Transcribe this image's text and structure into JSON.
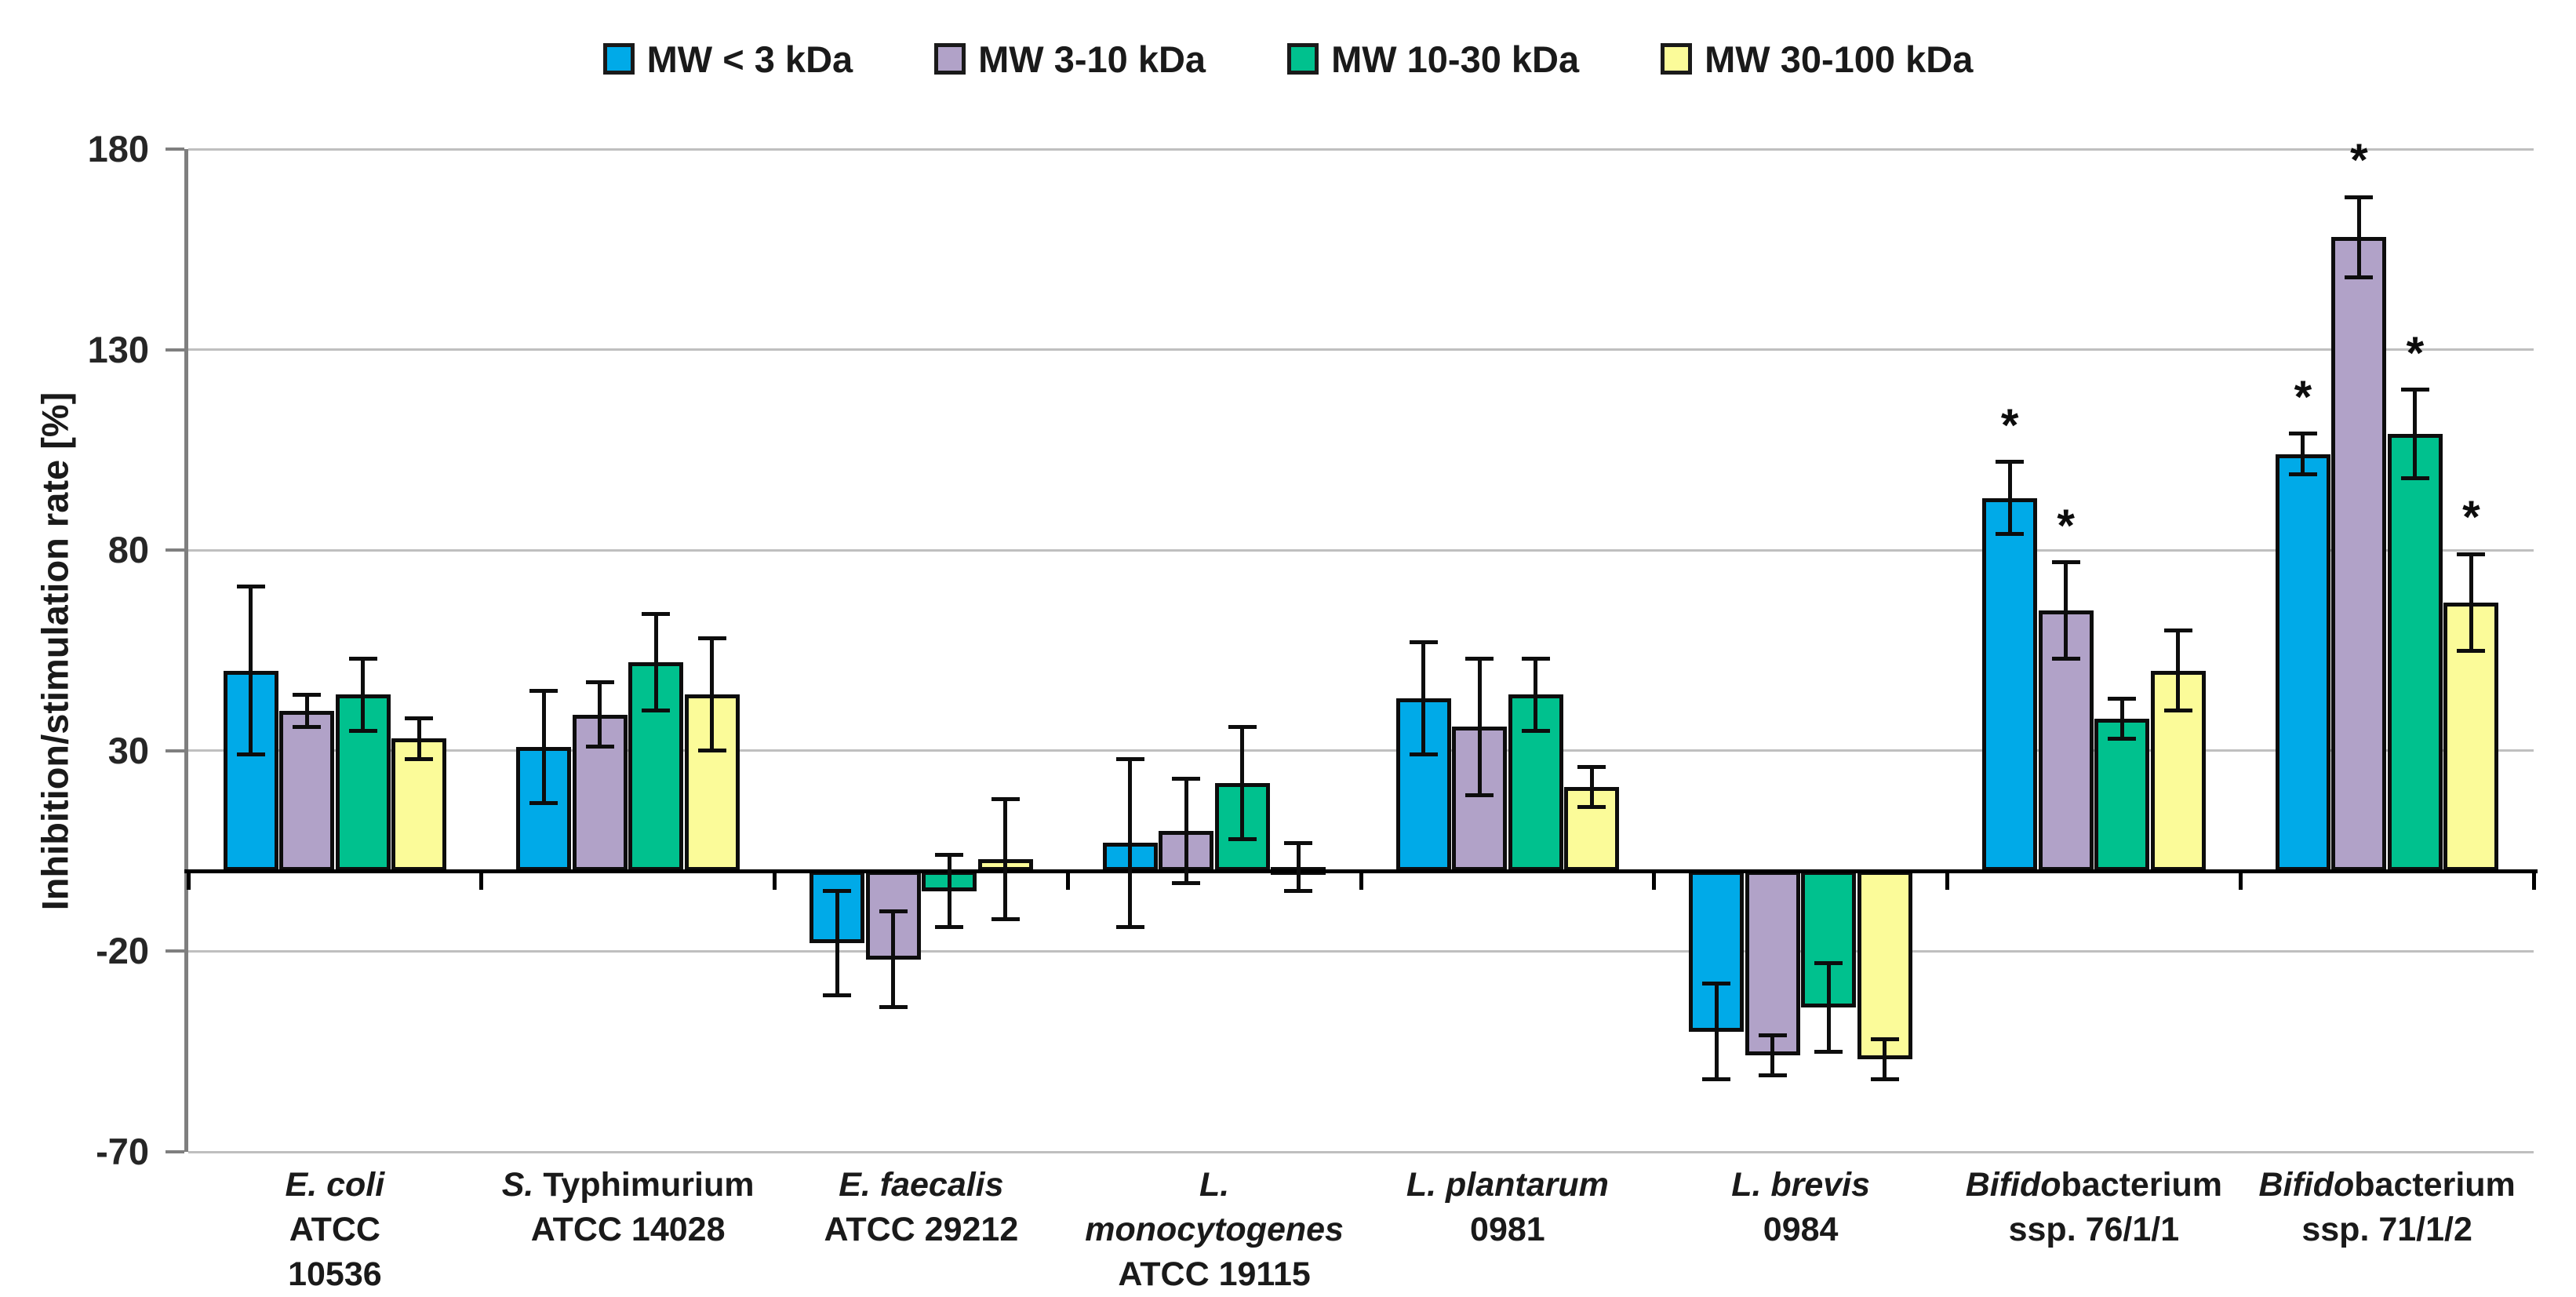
{
  "figure": {
    "kind": "grouped bar chart with error bars",
    "background": "#ffffff"
  },
  "chart_data": {
    "type": "bar",
    "title": "",
    "xlabel": "",
    "ylabel": "Inhibition/stimulation rate [%]",
    "ylim": [
      -70,
      180
    ],
    "yticks": [
      180,
      130,
      80,
      30,
      -20,
      -70
    ],
    "grid": "horizontal",
    "legend_position": "top-center",
    "significance_marker": "*",
    "colors": {
      "grid": "#bfbfbf",
      "y_axis": "#7f7f7f",
      "zero_line": "#000000",
      "bar_border": "#0d0d0d"
    },
    "categories": [
      {
        "text": "E. coli ATCC 10536",
        "lines": [
          [
            {
              "t": "E. coli",
              "i": true
            }
          ],
          [
            {
              "t": "ATCC",
              "i": false
            }
          ],
          [
            {
              "t": "10536",
              "i": false
            }
          ]
        ]
      },
      {
        "text": "S. Typhimurium ATCC 14028",
        "lines": [
          [
            {
              "t": "S.",
              "i": true
            },
            {
              "t": " Typhimurium",
              "i": false
            }
          ],
          [
            {
              "t": "ATCC 14028",
              "i": false
            }
          ]
        ]
      },
      {
        "text": "E. faecalis ATCC 29212",
        "lines": [
          [
            {
              "t": "E. faecalis",
              "i": true
            }
          ],
          [
            {
              "t": "ATCC 29212",
              "i": false
            }
          ]
        ]
      },
      {
        "text": "L. monocytogenes ATCC 19115",
        "lines": [
          [
            {
              "t": "L. monocytogenes",
              "i": true
            }
          ],
          [
            {
              "t": "ATCC 19115",
              "i": false
            }
          ]
        ]
      },
      {
        "text": "L. plantarum 0981",
        "lines": [
          [
            {
              "t": "L. plantarum",
              "i": true
            }
          ],
          [
            {
              "t": "0981",
              "i": false
            }
          ]
        ]
      },
      {
        "text": "L. brevis 0984",
        "lines": [
          [
            {
              "t": "L. brevis",
              "i": true
            }
          ],
          [
            {
              "t": "0984",
              "i": false
            }
          ]
        ]
      },
      {
        "text": "Bifidobacterium ssp. 76/1/1",
        "lines": [
          [
            {
              "t": "Bifido",
              "i": true
            },
            {
              "t": "bacterium",
              "i": false
            }
          ],
          [
            {
              "t": "ssp. 76/1/1",
              "i": false
            }
          ]
        ]
      },
      {
        "text": "Bifidobacterium ssp. 71/1/2",
        "lines": [
          [
            {
              "t": "Bifido",
              "i": true
            },
            {
              "t": "bacterium",
              "i": false
            }
          ],
          [
            {
              "t": "ssp. 71/1/2",
              "i": false
            }
          ]
        ]
      }
    ],
    "series": [
      {
        "name": "MW < 3 kDa",
        "color": "#00aae8",
        "values": [
          50,
          31,
          -18,
          7,
          43,
          -40,
          93,
          104
        ],
        "errors": [
          21,
          14,
          13,
          21,
          14,
          12,
          9,
          5
        ],
        "sig": [
          false,
          false,
          false,
          false,
          false,
          false,
          true,
          true
        ]
      },
      {
        "name": "MW 3-10 kDa",
        "color": "#b1a2c8",
        "values": [
          40,
          39,
          -22,
          10,
          36,
          -46,
          65,
          158
        ],
        "errors": [
          4,
          8,
          12,
          13,
          17,
          5,
          12,
          10
        ],
        "sig": [
          false,
          false,
          false,
          false,
          false,
          false,
          true,
          true
        ]
      },
      {
        "name": "MW 10-30 kDa",
        "color": "#00c18e",
        "values": [
          44,
          52,
          -5,
          22,
          44,
          -34,
          38,
          109
        ],
        "errors": [
          9,
          12,
          9,
          14,
          9,
          11,
          5,
          11
        ],
        "sig": [
          false,
          false,
          false,
          false,
          false,
          false,
          false,
          true
        ]
      },
      {
        "name": "MW 30-100 kDa",
        "color": "#fbfb99",
        "values": [
          33,
          44,
          3,
          1,
          21,
          -47,
          50,
          67
        ],
        "errors": [
          5,
          14,
          15,
          6,
          5,
          5,
          10,
          12
        ],
        "sig": [
          false,
          false,
          false,
          false,
          false,
          false,
          false,
          true
        ]
      }
    ]
  }
}
